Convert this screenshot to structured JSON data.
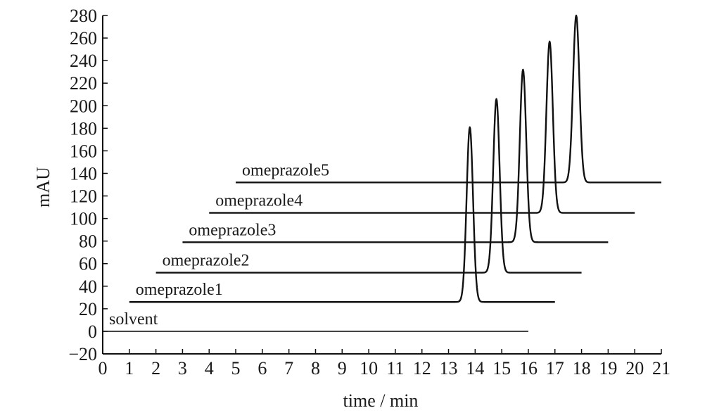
{
  "chart_data": {
    "type": "line",
    "title": "",
    "xlabel": "time / min",
    "ylabel": "mAU",
    "xlim": [
      0,
      21
    ],
    "ylim": [
      -20,
      280
    ],
    "xticks": [
      "0",
      "1",
      "2",
      "3",
      "4",
      "5",
      "6",
      "7",
      "8",
      "9",
      "10",
      "11",
      "12",
      "13",
      "14",
      "15",
      "16",
      "17",
      "18",
      "19",
      "20",
      "21"
    ],
    "yticks": [
      "−20",
      "0",
      "20",
      "40",
      "60",
      "80",
      "100",
      "120",
      "140",
      "160",
      "180",
      "200",
      "220",
      "240",
      "260",
      "280"
    ],
    "grid": false,
    "legend": "inline labels above each trace",
    "series": [
      {
        "name": "solvent",
        "x_start": 0,
        "x_end": 16,
        "baseline": 0,
        "peak_time": null,
        "peak_value": null
      },
      {
        "name": "omeprazole1",
        "x_start": 1,
        "x_end": 17,
        "baseline": 26,
        "peak_time": 13.8,
        "peak_value": 181
      },
      {
        "name": "omeprazole2",
        "x_start": 2,
        "x_end": 18,
        "baseline": 52,
        "peak_time": 14.8,
        "peak_value": 206
      },
      {
        "name": "omeprazole3",
        "x_start": 3,
        "x_end": 19,
        "baseline": 79,
        "peak_time": 15.8,
        "peak_value": 232
      },
      {
        "name": "omeprazole4",
        "x_start": 4,
        "x_end": 20,
        "baseline": 105,
        "peak_time": 16.8,
        "peak_value": 257
      },
      {
        "name": "omeprazole5",
        "x_start": 5,
        "x_end": 21,
        "baseline": 132,
        "peak_time": 17.8,
        "peak_value": 280
      }
    ]
  }
}
